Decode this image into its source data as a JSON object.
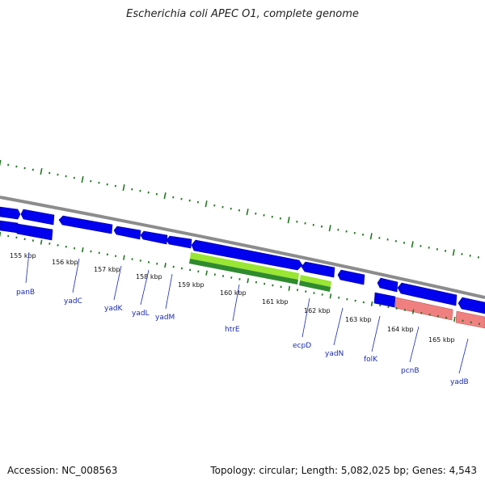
{
  "title": "Escherichia coli APEC O1, complete genome",
  "accession_label": "Accession: NC_008563",
  "summary_label": "Topology: circular; Length: 5,082,025 bp; Genes: 4,543",
  "colors": {
    "backbone": "#8c8c8c",
    "cds": "#0000ee",
    "green_light": "#99e633",
    "green_dark": "#2e8b2e",
    "pink": "#f08080",
    "tick": "#227722",
    "gene_label": "#1a2bb0"
  },
  "kbp_ticks": [
    "155 kbp",
    "156 kbp",
    "157 kbp",
    "158 kbp",
    "159 kbp",
    "160 kbp",
    "161 kbp",
    "162 kbp",
    "163 kbp",
    "164 kbp",
    "165 kbp"
  ],
  "gene_labels": [
    "panB",
    "yadC",
    "yadK",
    "yadL",
    "yadM",
    "htrE",
    "ecpD",
    "yadN",
    "folK",
    "pcnB",
    "yadB"
  ]
}
